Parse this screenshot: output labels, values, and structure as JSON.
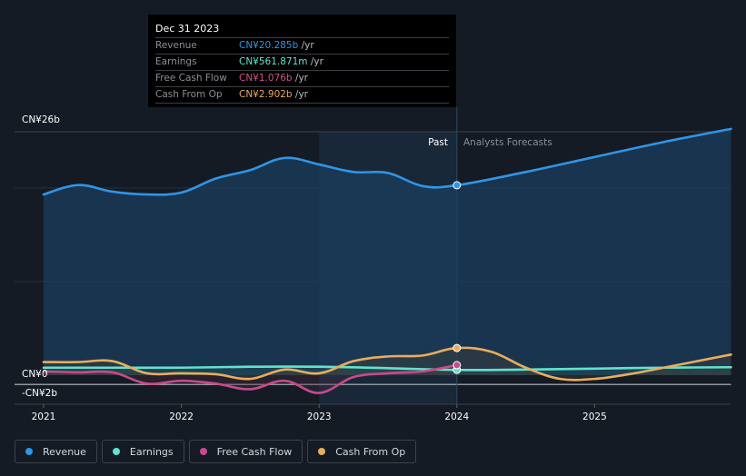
{
  "tooltip": {
    "date": "Dec 31 2023",
    "rows": [
      {
        "label": "Revenue",
        "value": "CN¥20.285b",
        "unit": " /yr",
        "color": "#2f95e6"
      },
      {
        "label": "Earnings",
        "value": "CN¥561.871m",
        "unit": " /yr",
        "color": "#5fe3cf"
      },
      {
        "label": "Free Cash Flow",
        "value": "CN¥1.076b",
        "unit": " /yr",
        "color": "#d0508f"
      },
      {
        "label": "Cash From Op",
        "value": "CN¥2.902b",
        "unit": " /yr",
        "color": "#e8a95a"
      }
    ]
  },
  "legend": [
    {
      "label": "Revenue",
      "color": "#2f95e6"
    },
    {
      "label": "Earnings",
      "color": "#5fe3cf"
    },
    {
      "label": "Free Cash Flow",
      "color": "#c84a8c"
    },
    {
      "label": "Cash From Op",
      "color": "#e8ad5d"
    }
  ],
  "chart_data": {
    "type": "line",
    "title": "",
    "xlabel": "",
    "ylabel": "",
    "currency": "CN¥",
    "ylim": [
      -2,
      26
    ],
    "y_tick_labels": [
      "CN¥26b",
      "CN¥0",
      "-CN¥2b"
    ],
    "y_ticks": [
      26,
      0,
      -2
    ],
    "x_tick_labels": [
      "2021",
      "2022",
      "2023",
      "2024",
      "2025"
    ],
    "x_ticks": [
      2021,
      2022,
      2023,
      2024,
      2025
    ],
    "xlim": [
      2020.98,
      2025.99
    ],
    "past_label": "Past",
    "forecast_label": "Analysts Forecasts",
    "past_end": 2024.0,
    "highlight_start": 2023.0,
    "grid": true,
    "legend_position": "bottom-left",
    "series": [
      {
        "name": "Revenue",
        "color": "#2f95e6",
        "points": [
          [
            2021.0,
            19.3
          ],
          [
            2021.25,
            20.3
          ],
          [
            2021.5,
            19.6
          ],
          [
            2021.75,
            19.3
          ],
          [
            2022.0,
            19.5
          ],
          [
            2022.25,
            21.0
          ],
          [
            2022.5,
            21.9
          ],
          [
            2022.75,
            23.2
          ],
          [
            2023.0,
            22.5
          ],
          [
            2023.25,
            21.7
          ],
          [
            2023.5,
            21.6
          ],
          [
            2023.75,
            20.2
          ],
          [
            2024.0,
            20.285
          ],
          [
            2024.5,
            21.7
          ],
          [
            2025.0,
            23.3
          ],
          [
            2025.5,
            24.9
          ],
          [
            2025.99,
            26.3
          ]
        ]
      },
      {
        "name": "Earnings",
        "color": "#5fe3cf",
        "points": [
          [
            2021.0,
            0.8
          ],
          [
            2021.5,
            0.8
          ],
          [
            2022.0,
            0.8
          ],
          [
            2022.5,
            0.9
          ],
          [
            2023.0,
            0.9
          ],
          [
            2023.5,
            0.75
          ],
          [
            2024.0,
            0.56
          ],
          [
            2024.5,
            0.6
          ],
          [
            2025.0,
            0.7
          ],
          [
            2025.5,
            0.8
          ],
          [
            2025.99,
            0.85
          ]
        ]
      },
      {
        "name": "Free Cash Flow",
        "color": "#c84a8c",
        "points": [
          [
            2021.0,
            0.4
          ],
          [
            2021.25,
            0.3
          ],
          [
            2021.5,
            0.3
          ],
          [
            2021.75,
            -0.9
          ],
          [
            2022.0,
            -0.6
          ],
          [
            2022.25,
            -0.9
          ],
          [
            2022.5,
            -1.5
          ],
          [
            2022.75,
            -0.6
          ],
          [
            2023.0,
            -1.9
          ],
          [
            2023.25,
            -0.2
          ],
          [
            2023.5,
            0.2
          ],
          [
            2023.75,
            0.4
          ],
          [
            2024.0,
            1.076
          ]
        ]
      },
      {
        "name": "Cash From Op",
        "color": "#e8ad5d",
        "points": [
          [
            2021.0,
            1.4
          ],
          [
            2021.25,
            1.4
          ],
          [
            2021.5,
            1.5
          ],
          [
            2021.75,
            0.2
          ],
          [
            2022.0,
            0.2
          ],
          [
            2022.25,
            0.1
          ],
          [
            2022.5,
            -0.4
          ],
          [
            2022.75,
            0.6
          ],
          [
            2023.0,
            0.2
          ],
          [
            2023.25,
            1.5
          ],
          [
            2023.5,
            2.0
          ],
          [
            2023.75,
            2.1
          ],
          [
            2024.0,
            2.902
          ],
          [
            2024.25,
            2.5
          ],
          [
            2024.5,
            0.8
          ],
          [
            2024.75,
            -0.4
          ],
          [
            2025.0,
            -0.4
          ],
          [
            2025.25,
            0.1
          ],
          [
            2025.5,
            0.8
          ],
          [
            2025.99,
            2.2
          ]
        ]
      }
    ]
  }
}
